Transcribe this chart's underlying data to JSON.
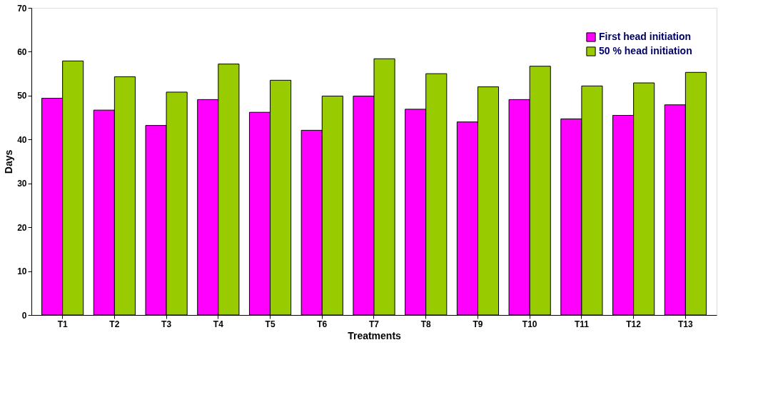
{
  "chart_data": {
    "type": "bar",
    "xlabel": "Treatments",
    "ylabel": "Days",
    "categories": [
      "T1",
      "T2",
      "T3",
      "T4",
      "T5",
      "T6",
      "T7",
      "T8",
      "T9",
      "T10",
      "T11",
      "T12",
      "T13"
    ],
    "series": [
      {
        "name": "First head initiation",
        "color": "#ff00ff",
        "values": [
          49.4,
          46.7,
          43.2,
          49.1,
          46.2,
          42.1,
          49.9,
          46.9,
          44.0,
          49.1,
          44.7,
          45.5,
          47.9
        ]
      },
      {
        "name": "50 % head initiation",
        "color": "#99cc00",
        "values": [
          57.9,
          54.3,
          50.8,
          57.2,
          53.5,
          49.9,
          58.4,
          55.0,
          52.0,
          56.7,
          52.2,
          52.9,
          55.3
        ]
      }
    ],
    "ylim": [
      0,
      70
    ],
    "yticks": [
      0,
      10,
      20,
      30,
      40,
      50,
      60,
      70
    ],
    "grid": false,
    "legend": "top right"
  }
}
